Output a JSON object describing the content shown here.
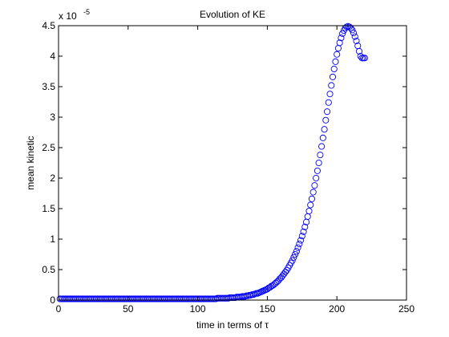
{
  "chart_data": {
    "type": "scatter",
    "title": "Evolution of KE",
    "xlabel": "time in terms of τ",
    "ylabel": "mean kinetic",
    "xlim": [
      0,
      250
    ],
    "ylim": [
      0,
      4.5
    ],
    "y_exponent_label": "x 10",
    "y_exponent_power": "-5",
    "y_scale_note": "values in units of 10^-5",
    "grid": false,
    "marker": "circle-open",
    "marker_color": "#0000ff",
    "x_ticks": [
      0,
      50,
      100,
      150,
      200,
      250
    ],
    "x_tick_labels": [
      "0",
      "50",
      "100",
      "150",
      "200",
      "250"
    ],
    "y_ticks": [
      0,
      0.5,
      1,
      1.5,
      2,
      2.5,
      3,
      3.5,
      4,
      4.5
    ],
    "y_tick_labels": [
      "0",
      "0.5",
      "1",
      "1.5",
      "2",
      "2.5",
      "3",
      "3.5",
      "4",
      "4.5"
    ],
    "series": [
      {
        "x_range": [
          1,
          241
        ],
        "x_step": 1,
        "values": [
          0.02,
          0.02,
          0.02,
          0.02,
          0.02,
          0.02,
          0.02,
          0.02,
          0.02,
          0.02,
          0.02,
          0.02,
          0.02,
          0.02,
          0.02,
          0.02,
          0.02,
          0.02,
          0.02,
          0.02,
          0.02,
          0.02,
          0.02,
          0.02,
          0.02,
          0.02,
          0.02,
          0.02,
          0.02,
          0.02,
          0.02,
          0.02,
          0.02,
          0.02,
          0.02,
          0.02,
          0.02,
          0.02,
          0.02,
          0.02,
          0.02,
          0.02,
          0.02,
          0.02,
          0.02,
          0.02,
          0.02,
          0.02,
          0.02,
          0.02,
          0.02,
          0.02,
          0.02,
          0.02,
          0.02,
          0.02,
          0.02,
          0.02,
          0.02,
          0.02,
          0.02,
          0.02,
          0.02,
          0.02,
          0.02,
          0.02,
          0.02,
          0.02,
          0.02,
          0.02,
          0.02,
          0.02,
          0.02,
          0.02,
          0.02,
          0.02,
          0.02,
          0.02,
          0.02,
          0.02,
          0.02,
          0.02,
          0.02,
          0.02,
          0.02,
          0.02,
          0.02,
          0.02,
          0.02,
          0.02,
          0.02,
          0.02,
          0.02,
          0.02,
          0.02,
          0.02,
          0.02,
          0.02,
          0.02,
          0.02,
          0.02,
          0.02,
          0.02,
          0.02,
          0.02,
          0.02,
          0.02,
          0.02,
          0.02,
          0.02,
          0.02,
          0.02,
          0.02,
          0.03,
          0.03,
          0.03,
          0.03,
          0.03,
          0.03,
          0.03,
          0.03,
          0.03,
          0.04,
          0.04,
          0.04,
          0.04,
          0.04,
          0.05,
          0.05,
          0.05,
          0.05,
          0.06,
          0.06,
          0.06,
          0.07,
          0.07,
          0.08,
          0.08,
          0.09,
          0.09,
          0.1,
          0.11,
          0.11,
          0.12,
          0.13,
          0.14,
          0.15,
          0.16,
          0.17,
          0.18,
          0.2,
          0.21,
          0.23,
          0.24,
          0.26,
          0.28,
          0.3,
          0.32,
          0.35,
          0.37,
          0.4,
          0.43,
          0.46,
          0.49,
          0.53,
          0.57,
          0.61,
          0.65,
          0.7,
          0.75,
          0.8,
          0.86,
          0.92,
          0.98,
          1.05,
          1.12,
          1.2,
          1.28,
          1.37,
          1.46,
          1.56,
          1.66,
          1.77,
          1.88,
          2.0,
          2.12,
          2.25,
          2.38,
          2.52,
          2.66,
          2.8,
          2.95,
          3.09,
          3.24,
          3.38,
          3.52,
          3.66,
          3.79,
          3.91,
          4.03,
          4.13,
          4.22,
          4.3,
          4.37,
          4.42,
          4.46,
          4.48,
          4.49,
          4.48,
          4.46,
          4.43,
          4.38,
          4.32,
          4.25,
          4.17,
          4.08,
          4.0,
          3.97,
          3.97,
          3.97
        ]
      }
    ]
  }
}
